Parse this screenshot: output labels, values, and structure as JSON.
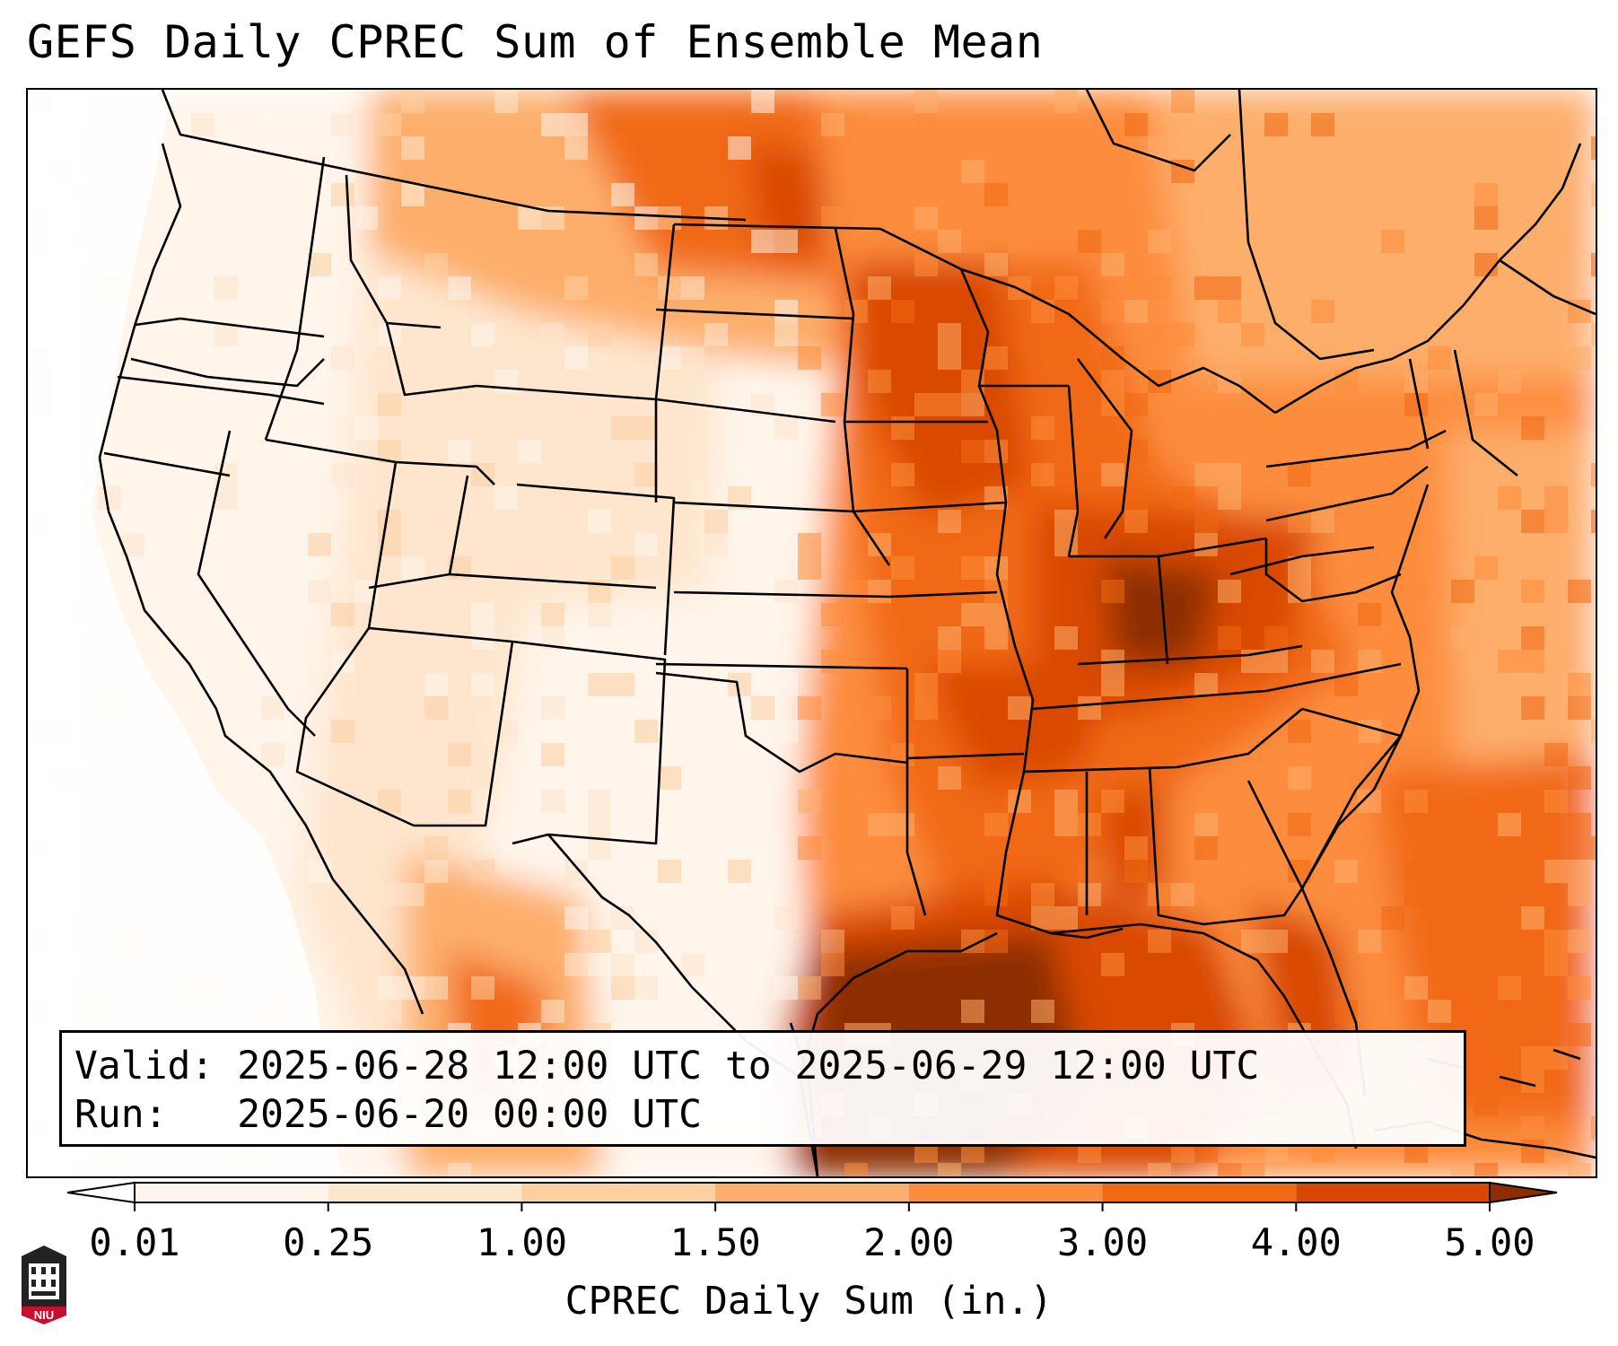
{
  "title": "GEFS Daily CPREC Sum of Ensemble Mean",
  "info": {
    "valid_label": "Valid:",
    "valid_value": "2025-06-28 12:00 UTC to 2025-06-29 12:00 UTC",
    "run_label": "Run:",
    "run_value": "2025-06-20 00:00 UTC"
  },
  "colorbar": {
    "title": "CPREC Daily Sum (in.)",
    "ticks": [
      "0.01",
      "0.25",
      "1.00",
      "1.50",
      "2.00",
      "3.00",
      "4.00",
      "5.00"
    ],
    "colors": [
      "#fff5eb",
      "#fee6ce",
      "#fdd0a2",
      "#fdae6b",
      "#fd8d3c",
      "#f16913",
      "#d94801",
      "#8c2d04"
    ],
    "under_color": "#ffffff",
    "over_color": "#8c2d04"
  },
  "logo": {
    "text": "NIU",
    "color": "#c8102e"
  }
}
